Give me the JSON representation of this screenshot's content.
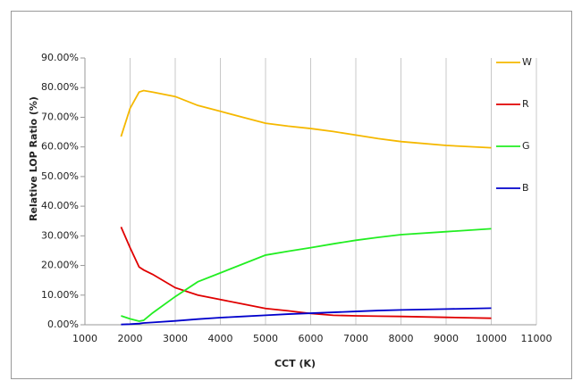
{
  "chart_data": {
    "type": "line",
    "xlabel": "CCT  (K)",
    "ylabel": "Relative LOP Ratio  (%)",
    "x": [
      1800,
      2000,
      2200,
      2300,
      2500,
      3000,
      3500,
      4000,
      4500,
      5000,
      5500,
      6000,
      6500,
      7000,
      7500,
      8000,
      9000,
      10000
    ],
    "series": [
      {
        "name": "W",
        "color": "#f5b800",
        "values": [
          63.5,
          73,
          78.5,
          79,
          78.5,
          77,
          74,
          72,
          70,
          68,
          67,
          66.2,
          65.2,
          64,
          62.8,
          61.8,
          60.5,
          59.7
        ]
      },
      {
        "name": "R",
        "color": "#e00000",
        "values": [
          33,
          26,
          19.5,
          18.5,
          17,
          12.5,
          10,
          8.5,
          7,
          5.5,
          4.7,
          3.8,
          3.2,
          3,
          2.9,
          2.8,
          2.5,
          2.2
        ]
      },
      {
        "name": "G",
        "color": "#22ee22",
        "values": [
          3,
          2,
          1.2,
          1.5,
          4,
          9.5,
          14.5,
          17.5,
          20.5,
          23.5,
          24.8,
          26,
          27.3,
          28.5,
          29.5,
          30.4,
          31.4,
          32.4
        ]
      },
      {
        "name": "B",
        "color": "#0000cc",
        "values": [
          0.1,
          0.2,
          0.4,
          0.6,
          0.8,
          1.3,
          1.9,
          2.4,
          2.8,
          3.2,
          3.6,
          3.9,
          4.2,
          4.5,
          4.8,
          5,
          5.3,
          5.6
        ]
      }
    ],
    "xlim": [
      1000,
      11000
    ],
    "xticks": [
      1000,
      2000,
      3000,
      4000,
      5000,
      6000,
      7000,
      8000,
      9000,
      10000,
      11000
    ],
    "ylim": [
      0,
      90
    ],
    "yticks": [
      {
        "value": 0,
        "label": "0.00%"
      },
      {
        "value": 10,
        "label": "10.00%"
      },
      {
        "value": 20,
        "label": "20.00%"
      },
      {
        "value": 30,
        "label": "30.00%"
      },
      {
        "value": 40,
        "label": "40.00%"
      },
      {
        "value": 50,
        "label": "50.00%"
      },
      {
        "value": 60,
        "label": "60.00%"
      },
      {
        "value": 70,
        "label": "70.00%"
      },
      {
        "value": 80,
        "label": "80.00%"
      },
      {
        "value": 90,
        "label": "90.00%"
      }
    ],
    "grid": true,
    "legend": "right"
  }
}
